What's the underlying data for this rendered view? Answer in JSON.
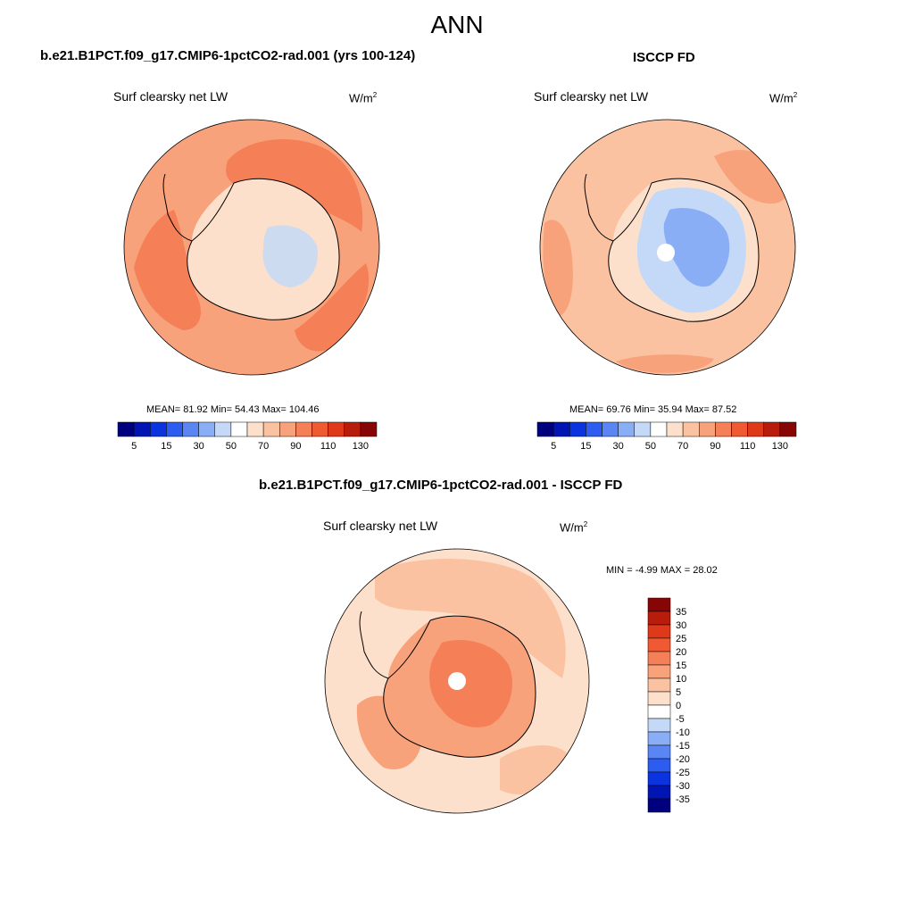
{
  "title": "ANN",
  "panels": [
    {
      "id": "model",
      "title": "b.e21.B1PCT.f09_g17.CMIP6-1pctCO2-rad.001 (yrs 100-124)",
      "variable": "Surf clearsky net LW",
      "units_base": "W/m",
      "units_exp": "2",
      "stats": {
        "mean": "81.92",
        "min": "54.43",
        "max": "104.46"
      },
      "stats_text": "MEAN=  81.92  Min=  54.43  Max= 104.46"
    },
    {
      "id": "obs",
      "title": "ISCCP FD",
      "variable": "Surf clearsky net LW",
      "units_base": "W/m",
      "units_exp": "2",
      "stats": {
        "mean": "69.76",
        "min": "35.94",
        "max": "87.52"
      },
      "stats_text": "MEAN=  69.76  Min=  35.94  Max=  87.52"
    },
    {
      "id": "diff",
      "title": "b.e21.B1PCT.f09_g17.CMIP6-1pctCO2-rad.001 - ISCCP FD",
      "variable": "Surf clearsky net LW",
      "units_base": "W/m",
      "units_exp": "2",
      "stats": {
        "min": "-4.99",
        "max": "28.02"
      },
      "stats_text": "MIN =  -4.99 MAX =  28.02"
    }
  ],
  "colorbar_abs": {
    "colors": [
      "#00007f",
      "#0015b4",
      "#0b33e0",
      "#2d5cf0",
      "#5a86f4",
      "#8aaef5",
      "#c4d9f7",
      "#ffffff",
      "#fde0cb",
      "#fbc2a2",
      "#f8a27c",
      "#f57f57",
      "#f05a33",
      "#e0391a",
      "#b81c0a",
      "#870505"
    ],
    "labels": [
      "5",
      "15",
      "30",
      "50",
      "70",
      "90",
      "110",
      "130"
    ]
  },
  "colorbar_diff": {
    "colors": [
      "#870505",
      "#b81c0a",
      "#e0391a",
      "#f05a33",
      "#f57f57",
      "#f8a27c",
      "#fbc2a2",
      "#fde0cb",
      "#ffffff",
      "#c4d9f7",
      "#8aaef5",
      "#5a86f4",
      "#2d5cf0",
      "#0b33e0",
      "#0015b4",
      "#00007f"
    ],
    "labels": [
      "35",
      "30",
      "25",
      "20",
      "15",
      "10",
      "5",
      "0",
      "-5",
      "-10",
      "-15",
      "-20",
      "-25",
      "-30",
      "-35"
    ]
  }
}
